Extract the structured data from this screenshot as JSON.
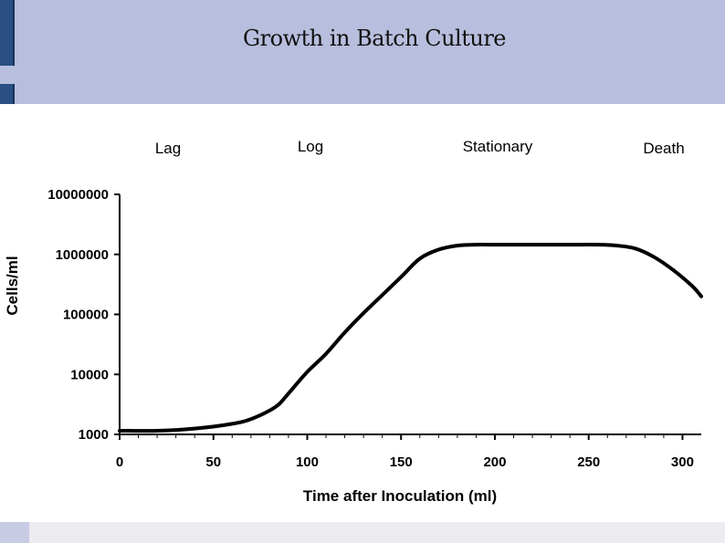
{
  "slide": {
    "title": "Growth in Batch Culture"
  },
  "chart_data": {
    "type": "line",
    "title": "",
    "xlabel": "Time after Inoculation (ml)",
    "ylabel": "Cells/ml",
    "y_scale": "log",
    "xlim": [
      0,
      310
    ],
    "ylim": [
      1000,
      10000000
    ],
    "x_ticks": [
      "0",
      "50",
      "100",
      "150",
      "200",
      "250",
      "300"
    ],
    "y_ticks": [
      "1000",
      "10000",
      "100000",
      "1000000",
      "10000000"
    ],
    "phases": [
      "Lag",
      "Log",
      "Stationary",
      "Death"
    ],
    "grid": false,
    "legend": "none",
    "series": [
      {
        "x": [
          0,
          20,
          40,
          60,
          70,
          80,
          85,
          90,
          100,
          110,
          120,
          130,
          140,
          150,
          160,
          170,
          180,
          190,
          200,
          220,
          240,
          255,
          265,
          275,
          285,
          295,
          305,
          310
        ],
        "y": [
          1150,
          1150,
          1250,
          1500,
          1800,
          2500,
          3200,
          4800,
          11000,
          22000,
          50000,
          105000,
          210000,
          420000,
          850000,
          1200000,
          1400000,
          1450000,
          1450000,
          1450000,
          1450000,
          1450000,
          1400000,
          1250000,
          900000,
          550000,
          300000,
          200000
        ]
      }
    ]
  }
}
